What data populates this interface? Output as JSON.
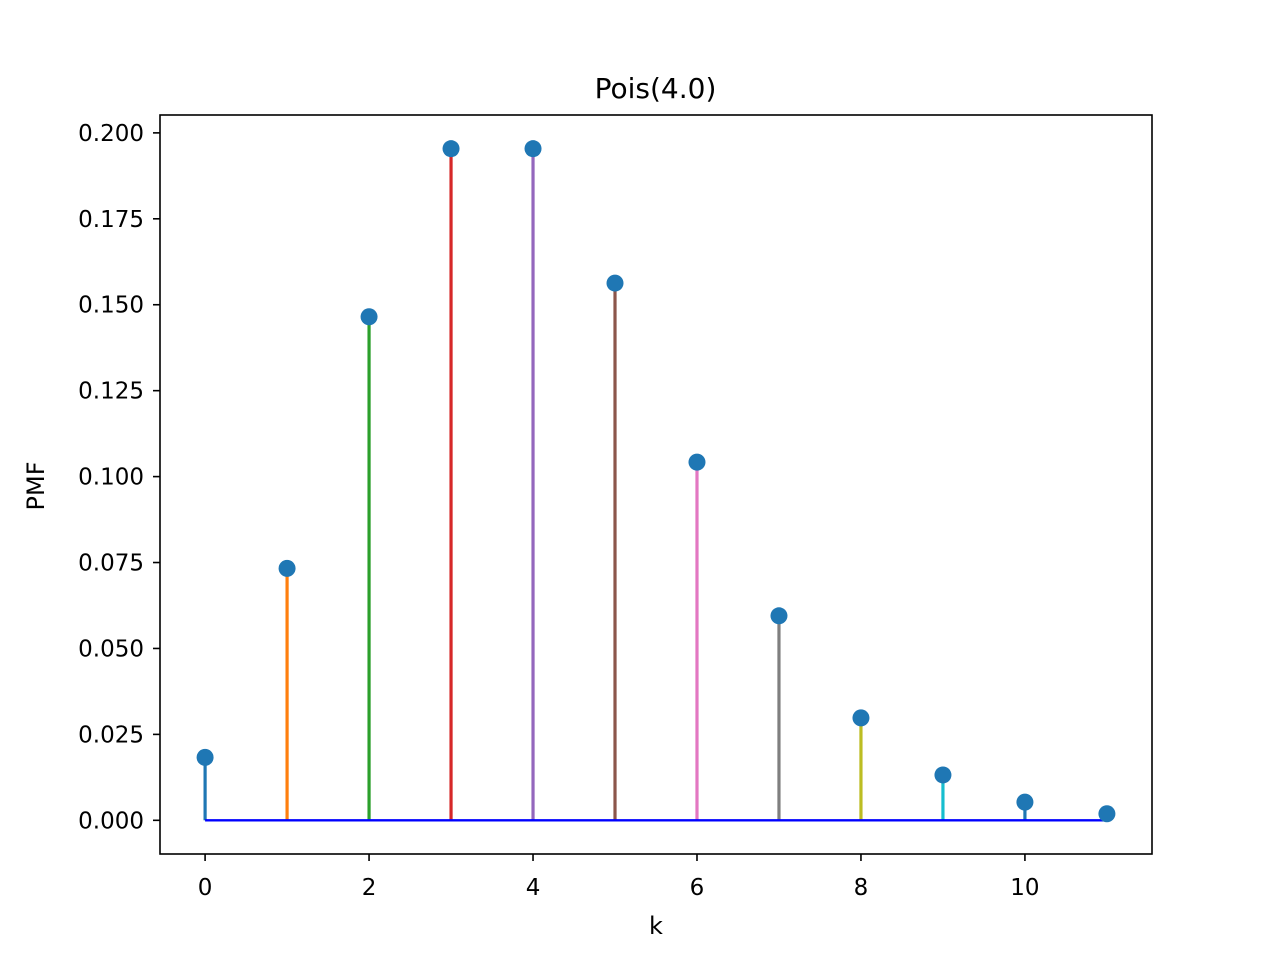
{
  "chart_data": {
    "type": "stem",
    "title": "Pois(4.0)",
    "xlabel": "k",
    "ylabel": "PMF",
    "xlim": [
      -0.55,
      11.55
    ],
    "ylim": [
      -0.0098,
      0.2052
    ],
    "xticks": [
      0,
      2,
      4,
      6,
      8,
      10
    ],
    "xtick_labels": [
      "0",
      "2",
      "4",
      "6",
      "8",
      "10"
    ],
    "yticks": [
      0.0,
      0.025,
      0.05,
      0.075,
      0.1,
      0.125,
      0.15,
      0.175,
      0.2
    ],
    "ytick_labels": [
      "0.000",
      "0.025",
      "0.050",
      "0.075",
      "0.100",
      "0.125",
      "0.150",
      "0.175",
      "0.200"
    ],
    "grid": false,
    "legend": null,
    "x": [
      0,
      1,
      2,
      3,
      4,
      5,
      6,
      7,
      8,
      9,
      10,
      11
    ],
    "values": [
      0.0183,
      0.0733,
      0.1465,
      0.1954,
      0.1954,
      0.1563,
      0.1042,
      0.0595,
      0.0298,
      0.0132,
      0.0053,
      0.0019
    ],
    "marker_color": "#1f77b4",
    "stem_colors": [
      "#1f77b4",
      "#ff7f0e",
      "#2ca02c",
      "#d62728",
      "#9467bd",
      "#8c564b",
      "#e377c2",
      "#7f7f7f",
      "#bcbd22",
      "#17becf",
      "#1f77b4",
      "#ff7f0e"
    ],
    "baseline_color": "#0000ff"
  }
}
